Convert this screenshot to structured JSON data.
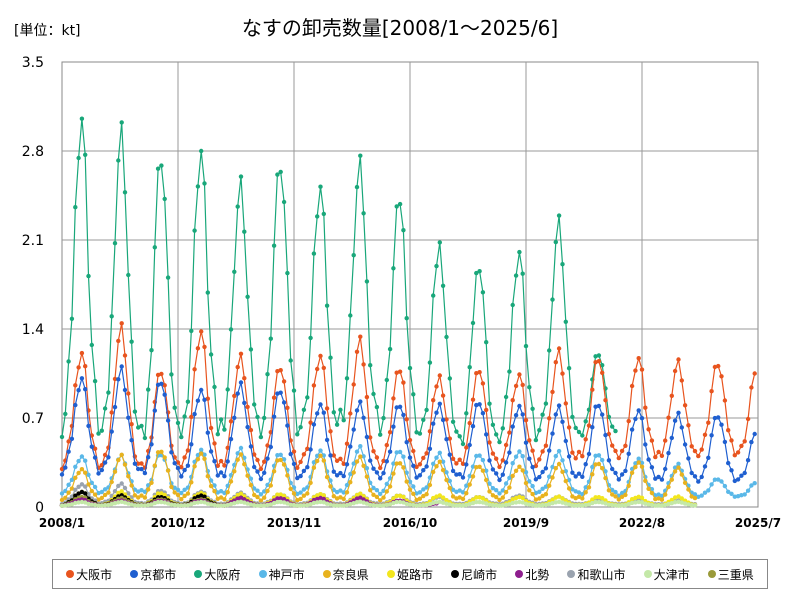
{
  "unit_label": "[単位：kt]",
  "chart_data": {
    "type": "line",
    "title": "なすの卸売数量[2008/1～2025/6]",
    "ylabel": "",
    "xlabel": "",
    "ylim": [
      0,
      3.5
    ],
    "yticks": [
      "0",
      "0.7",
      "1.4",
      "2.1",
      "2.8",
      "3.5"
    ],
    "xticks": [
      "2008/1",
      "2010/12",
      "2013/11",
      "2016/10",
      "2019/9",
      "2022/8",
      "2025/7"
    ],
    "grid": true,
    "legend_position": "bottom",
    "series": [
      {
        "name": "大阪市",
        "color": "#E8541E",
        "start": "2008/1",
        "end": "2025/6",
        "yearly_peaks": [
          1.22,
          1.41,
          1.08,
          1.38,
          1.17,
          1.1,
          1.18,
          1.29,
          1.08,
          1.02,
          1.1,
          1.05,
          1.22,
          1.18,
          1.17,
          1.13,
          1.13,
          1.13
        ],
        "yearly_troughs": [
          0.28,
          0.26,
          0.26,
          0.28,
          0.3,
          0.3,
          0.32,
          0.3,
          0.3,
          0.3,
          0.3,
          0.3,
          0.32,
          0.35,
          0.36,
          0.38,
          0.4,
          0.4
        ]
      },
      {
        "name": "京都市",
        "color": "#1F5FD0",
        "start": "2008/1",
        "end": "2025/6",
        "yearly_peaks": [
          1.02,
          1.08,
          1.0,
          0.92,
          0.95,
          0.92,
          0.8,
          0.8,
          0.8,
          0.8,
          0.84,
          0.8,
          0.78,
          0.82,
          0.76,
          0.72,
          0.72,
          0.62
        ],
        "yearly_troughs": [
          0.24,
          0.24,
          0.22,
          0.22,
          0.22,
          0.22,
          0.22,
          0.22,
          0.22,
          0.22,
          0.2,
          0.2,
          0.2,
          0.2,
          0.2,
          0.2,
          0.2,
          0.2
        ]
      },
      {
        "name": "大阪府",
        "color": "#19A77A",
        "start": "2008/1",
        "end": "2021/12",
        "yearly_peaks": [
          3.08,
          2.95,
          2.78,
          2.8,
          2.52,
          2.7,
          2.5,
          2.66,
          2.42,
          2.05,
          1.93,
          2.02,
          2.24,
          1.22
        ],
        "yearly_troughs": [
          0.5,
          0.45,
          0.4,
          0.48,
          0.55,
          0.55,
          0.55,
          0.6,
          0.55,
          0.5,
          0.42,
          0.48,
          0.5,
          0.52
        ]
      },
      {
        "name": "神戸市",
        "color": "#5AB8E8",
        "start": "2008/1",
        "end": "2025/6",
        "yearly_peaks": [
          0.4,
          0.4,
          0.42,
          0.45,
          0.45,
          0.42,
          0.44,
          0.46,
          0.44,
          0.42,
          0.42,
          0.44,
          0.43,
          0.42,
          0.38,
          0.33,
          0.22,
          0.2
        ],
        "yearly_troughs": [
          0.1,
          0.1,
          0.1,
          0.1,
          0.1,
          0.1,
          0.1,
          0.1,
          0.1,
          0.1,
          0.1,
          0.1,
          0.1,
          0.08,
          0.08,
          0.08,
          0.08,
          0.08
        ]
      },
      {
        "name": "奈良県",
        "color": "#E8B21E",
        "start": "2008/1",
        "end": "2023/12",
        "yearly_peaks": [
          0.3,
          0.4,
          0.45,
          0.42,
          0.4,
          0.38,
          0.4,
          0.38,
          0.35,
          0.35,
          0.33,
          0.32,
          0.33,
          0.35,
          0.35,
          0.3
        ],
        "yearly_troughs": [
          0.05,
          0.05,
          0.05,
          0.05,
          0.05,
          0.05,
          0.05,
          0.05,
          0.05,
          0.05,
          0.05,
          0.05,
          0.05,
          0.05,
          0.05,
          0.05
        ]
      },
      {
        "name": "姫路市",
        "color": "#F2E61E",
        "start": "2008/1",
        "end": "2023/12",
        "yearly_peaks": [
          0.12,
          0.12,
          0.11,
          0.11,
          0.1,
          0.1,
          0.1,
          0.1,
          0.09,
          0.09,
          0.08,
          0.08,
          0.08,
          0.08,
          0.08,
          0.08
        ],
        "yearly_troughs": [
          0.01,
          0.01,
          0.01,
          0.01,
          0.01,
          0.01,
          0.01,
          0.01,
          0.01,
          0.01,
          0.01,
          0.01,
          0.01,
          0.01,
          0.01,
          0.01
        ]
      },
      {
        "name": "尼崎市",
        "color": "#000000",
        "start": "2008/1",
        "end": "2012/12",
        "yearly_peaks": [
          0.12,
          0.09,
          0.08,
          0.09,
          0.07
        ],
        "yearly_troughs": [
          0.01,
          0.01,
          0.01,
          0.01,
          0.01
        ]
      },
      {
        "name": "北勢",
        "color": "#8E1E8E",
        "start": "2008/1",
        "end": "2017/6",
        "yearly_peaks": [
          0.06,
          0.05,
          0.05,
          0.05,
          0.07,
          0.07,
          0.07,
          0.07,
          0.05,
          0.03
        ],
        "yearly_troughs": [
          0.01,
          0.01,
          0.01,
          0.01,
          0.01,
          0.01,
          0.01,
          0.01,
          0.01,
          0.01
        ]
      },
      {
        "name": "和歌山市",
        "color": "#9AA3AF",
        "start": "2008/1",
        "end": "2023/12",
        "yearly_peaks": [
          0.18,
          0.18,
          0.13,
          0.12,
          0.11,
          0.1,
          0.1,
          0.1,
          0.09,
          0.08,
          0.08,
          0.09,
          0.08,
          0.06,
          0.06,
          0.05
        ],
        "yearly_troughs": [
          0.02,
          0.02,
          0.02,
          0.02,
          0.02,
          0.02,
          0.02,
          0.02,
          0.02,
          0.02,
          0.02,
          0.02,
          0.02,
          0.02,
          0.02,
          0.02
        ]
      },
      {
        "name": "大津市",
        "color": "#C4E8A8",
        "start": "2008/1",
        "end": "2023/12",
        "yearly_peaks": [
          0.04,
          0.04,
          0.04,
          0.04,
          0.04,
          0.04,
          0.04,
          0.04,
          0.04,
          0.04,
          0.04,
          0.04,
          0.04,
          0.04,
          0.04,
          0.04
        ],
        "yearly_troughs": [
          0.01,
          0.01,
          0.01,
          0.01,
          0.01,
          0.01,
          0.01,
          0.01,
          0.01,
          0.01,
          0.01,
          0.01,
          0.01,
          0.01,
          0.01,
          0.01
        ]
      },
      {
        "name": "三重県",
        "color": "#9A9A3A",
        "start": "2008/1",
        "end": "2012/12",
        "yearly_peaks": [
          0.08,
          0.07,
          0.06,
          0.06,
          0.05
        ],
        "yearly_troughs": [
          0.01,
          0.01,
          0.01,
          0.01,
          0.01
        ]
      }
    ]
  }
}
